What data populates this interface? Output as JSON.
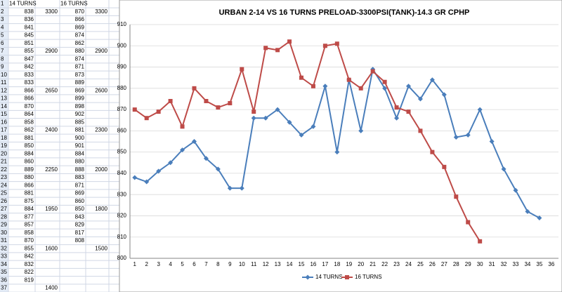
{
  "sheet": {
    "rows": [
      [
        1,
        "14 TURNS",
        null,
        "16 TURNS",
        null
      ],
      [
        2,
        838,
        3300,
        870,
        3300
      ],
      [
        3,
        836,
        null,
        866,
        null
      ],
      [
        4,
        841,
        null,
        869,
        null
      ],
      [
        5,
        845,
        null,
        874,
        null
      ],
      [
        6,
        851,
        null,
        862,
        null
      ],
      [
        7,
        855,
        2900,
        880,
        2900
      ],
      [
        8,
        847,
        null,
        874,
        null
      ],
      [
        9,
        842,
        null,
        871,
        null
      ],
      [
        10,
        833,
        null,
        873,
        null
      ],
      [
        11,
        833,
        null,
        889,
        null
      ],
      [
        12,
        866,
        2650,
        869,
        2600
      ],
      [
        13,
        866,
        null,
        899,
        null
      ],
      [
        14,
        870,
        null,
        898,
        null
      ],
      [
        15,
        864,
        null,
        902,
        null
      ],
      [
        16,
        858,
        null,
        885,
        null
      ],
      [
        17,
        862,
        2400,
        881,
        2300
      ],
      [
        18,
        881,
        null,
        900,
        null
      ],
      [
        19,
        850,
        null,
        901,
        null
      ],
      [
        20,
        884,
        null,
        884,
        null
      ],
      [
        21,
        860,
        null,
        880,
        null
      ],
      [
        22,
        889,
        2250,
        888,
        2000
      ],
      [
        23,
        880,
        null,
        883,
        null
      ],
      [
        24,
        866,
        null,
        871,
        null
      ],
      [
        25,
        881,
        null,
        869,
        null
      ],
      [
        26,
        875,
        null,
        860,
        null
      ],
      [
        27,
        884,
        1950,
        850,
        1800
      ],
      [
        28,
        877,
        null,
        843,
        null
      ],
      [
        29,
        857,
        null,
        829,
        null
      ],
      [
        30,
        858,
        null,
        817,
        null
      ],
      [
        31,
        870,
        null,
        808,
        null
      ],
      [
        32,
        855,
        1600,
        null,
        1500
      ],
      [
        33,
        842,
        null,
        null,
        null
      ],
      [
        34,
        832,
        null,
        null,
        null
      ],
      [
        35,
        822,
        null,
        null,
        null
      ],
      [
        36,
        819,
        null,
        null,
        null
      ],
      [
        37,
        null,
        1400,
        null,
        null
      ]
    ]
  },
  "chart_data": {
    "type": "line",
    "title": "URBAN 2-14 VS 16 TURNS PRELOAD-3300PSI(TANK)-14.3 GR CPHP",
    "categories": [
      1,
      2,
      3,
      4,
      5,
      6,
      7,
      8,
      9,
      10,
      11,
      12,
      13,
      14,
      15,
      16,
      17,
      18,
      19,
      20,
      21,
      22,
      23,
      24,
      25,
      26,
      27,
      28,
      29,
      30,
      31,
      32,
      33,
      34,
      35,
      36
    ],
    "series": [
      {
        "name": "14 TURNS",
        "color": "#4a7ebb",
        "marker": "diamond",
        "values": [
          838,
          836,
          841,
          845,
          851,
          855,
          847,
          842,
          833,
          833,
          866,
          866,
          870,
          864,
          858,
          862,
          881,
          850,
          884,
          860,
          889,
          880,
          866,
          881,
          875,
          884,
          877,
          857,
          858,
          870,
          855,
          842,
          832,
          822,
          819,
          null
        ]
      },
      {
        "name": "16 TURNS",
        "color": "#be4b48",
        "marker": "square",
        "values": [
          870,
          866,
          869,
          874,
          862,
          880,
          874,
          871,
          873,
          889,
          869,
          899,
          898,
          902,
          885,
          881,
          900,
          901,
          884,
          880,
          888,
          883,
          871,
          869,
          860,
          850,
          843,
          829,
          817,
          808,
          null,
          null,
          null,
          null,
          null,
          null
        ]
      }
    ],
    "ylim": [
      800,
      910
    ],
    "yticks": [
      800,
      810,
      820,
      830,
      840,
      850,
      860,
      870,
      880,
      890,
      900,
      910
    ],
    "grid": true,
    "legend": "bottom"
  }
}
